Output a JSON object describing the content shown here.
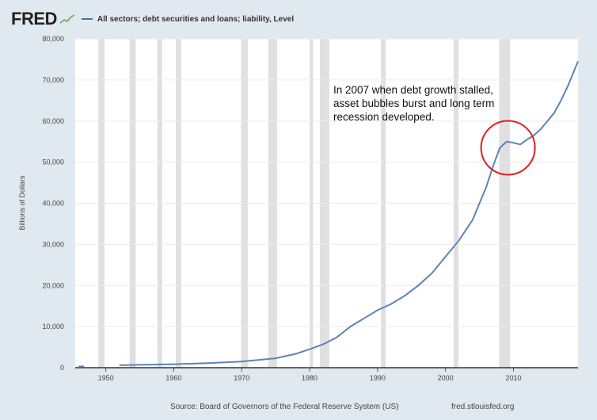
{
  "header": {
    "logo_text": "FRED",
    "logo_icon": "fred-chart-icon",
    "legend_label": "All sectors; debt securities and loans; liability, Level",
    "series_color": "#4572a7"
  },
  "footer": {
    "source": "Source: Board of Governors of the Federal Reserve System (US)",
    "site": "fred.stlouisfed.org"
  },
  "chart_data": {
    "type": "line",
    "title": "",
    "xlabel": "",
    "ylabel": "Billions of Dollars",
    "xlim": [
      1945.5,
      2019.5
    ],
    "ylim": [
      0,
      80000
    ],
    "x_ticks": [
      1950,
      1960,
      1970,
      1980,
      1990,
      2000,
      2010
    ],
    "y_ticks": [
      0,
      10000,
      20000,
      30000,
      40000,
      50000,
      60000,
      70000,
      80000
    ],
    "y_tick_labels": [
      "0",
      "10,000",
      "20,000",
      "30,000",
      "40,000",
      "50,000",
      "60,000",
      "70,000",
      "80,000"
    ],
    "grid": "horizontal",
    "recessions": [
      [
        1948.9,
        1949.8
      ],
      [
        1953.5,
        1954.4
      ],
      [
        1957.6,
        1958.3
      ],
      [
        1960.3,
        1961.1
      ],
      [
        1969.9,
        1970.9
      ],
      [
        1973.9,
        1975.2
      ],
      [
        1980.0,
        1980.5
      ],
      [
        1981.5,
        1982.9
      ],
      [
        1990.5,
        1991.2
      ],
      [
        2001.2,
        2001.9
      ],
      [
        2007.9,
        2009.5
      ]
    ],
    "series": [
      {
        "name": "All sectors; debt securities and loans; liability, Level",
        "x": [
          1946,
          1946.8,
          1952,
          1955,
          1960,
          1965,
          1970,
          1975,
          1978,
          1980,
          1982,
          1984,
          1986,
          1988,
          1990,
          1992,
          1994,
          1996,
          1998,
          2000,
          2002,
          2004,
          2006,
          2007,
          2008,
          2009,
          2010,
          2011,
          2012,
          2013,
          2014,
          2015,
          2016,
          2017,
          2018,
          2019.5
        ],
        "y": [
          300,
          300,
          600,
          700,
          850,
          1100,
          1500,
          2300,
          3400,
          4500,
          5700,
          7400,
          10000,
          12000,
          14000,
          15500,
          17500,
          20000,
          23000,
          27000,
          31000,
          36000,
          44000,
          49000,
          53500,
          55000,
          54700,
          54300,
          55500,
          56500,
          58000,
          60000,
          62000,
          65000,
          68500,
          74500
        ]
      }
    ],
    "annotation": {
      "lines": [
        "In 2007 when debt growth stalled,",
        "asset bubbles burst and long term",
        "recession developed."
      ],
      "circle_color": "#e02020",
      "circle_center": [
        2009.2,
        53500
      ]
    }
  }
}
